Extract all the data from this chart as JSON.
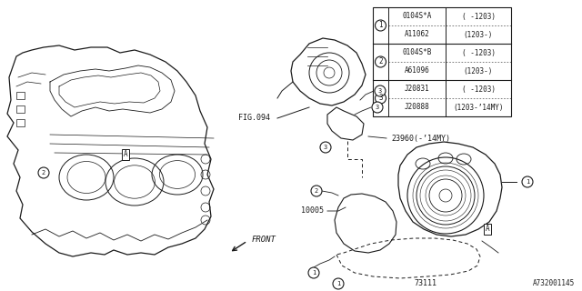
{
  "bg_color": "#ffffff",
  "line_color": "#1a1a1a",
  "fig_label": "FIG.094",
  "front_label": "FRONT",
  "part_number_label": "A732001145",
  "label_10005": "10005",
  "label_23960": "23960(-’14MY)",
  "label_73111": "73111",
  "table_rows": [
    [
      "0104S*A",
      "( -1203)"
    ],
    [
      "A11062",
      "(1203-)"
    ],
    [
      "0104S*B",
      "( -1203)"
    ],
    [
      "A61096",
      "(1203-)"
    ],
    [
      "J20831",
      "( -1203)"
    ],
    [
      "J20888",
      "(1203-’14MY)"
    ]
  ],
  "table_groups": [
    0,
    0,
    1,
    1,
    2,
    2
  ],
  "circle_labels": [
    "1",
    "2",
    "3"
  ]
}
